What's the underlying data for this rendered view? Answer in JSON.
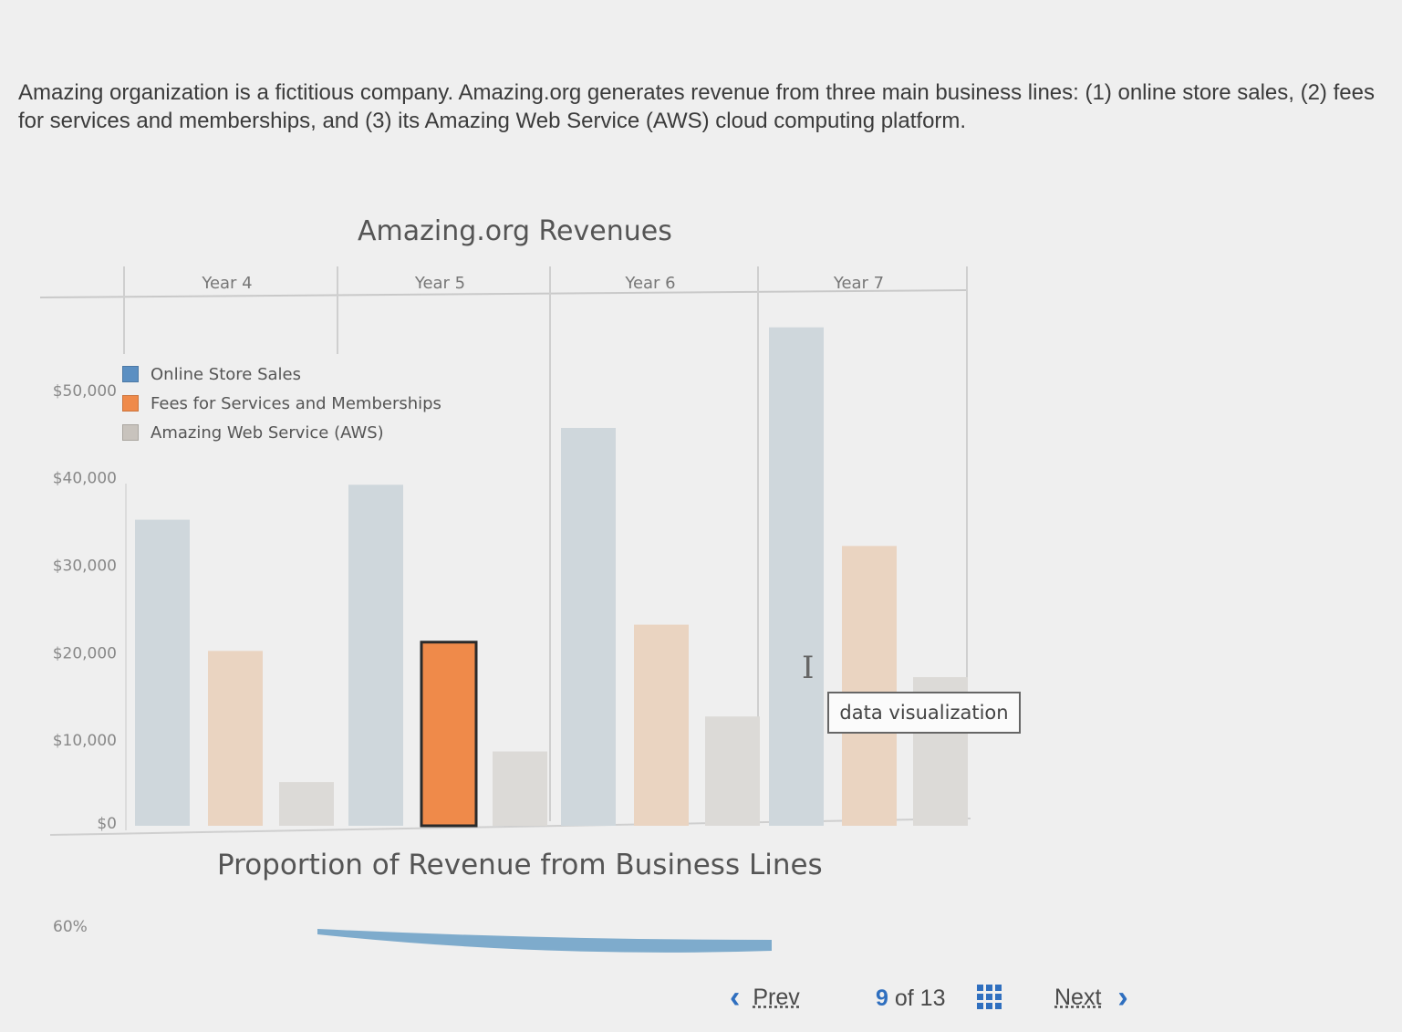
{
  "intro_text": "Amazing organization is a fictitious company. Amazing.org generates revenue from three main business lines: (1) online store sales, (2) fees for services and memberships, and (3) its Amazing Web Service (AWS) cloud computing platform.",
  "colors": {
    "online_store": "#cfd7dc",
    "online_store_legend": "#5b8fc2",
    "fees": "#ead4c1",
    "fees_legend": "#ef8a4a",
    "fees_highlight": "#ef8a4a",
    "aws": "#dcdad7",
    "aws_legend": "#c8c3bd",
    "blue_accent": "#2f6fbf",
    "pct_band": "#6a9fc6"
  },
  "chart_data": {
    "type": "bar",
    "title": "Amazing.org Revenues",
    "categories": [
      "Year 4",
      "Year 5",
      "Year 6",
      "Year 7"
    ],
    "series": [
      {
        "name": "Online Store Sales",
        "values": [
          35000,
          39000,
          45500,
          57000
        ]
      },
      {
        "name": "Fees for Services and Memberships",
        "values": [
          20000,
          21000,
          23000,
          32000
        ]
      },
      {
        "name": "Amazing Web Service (AWS)",
        "values": [
          5000,
          8500,
          12500,
          17000
        ]
      }
    ],
    "highlighted": {
      "series": 1,
      "category": 1
    },
    "y_ticks": [
      "$0",
      "$10,000",
      "$20,000",
      "$30,000",
      "$40,000",
      "$50,000"
    ],
    "ylim": [
      0,
      60000
    ],
    "legend_position": "top-left"
  },
  "tooltip_text": "data visualization",
  "subchart": {
    "title": "Proportion of Revenue from Business Lines",
    "y_tick": "60%"
  },
  "pager": {
    "prev_label": "Prev",
    "current": "9",
    "of_label": "of",
    "total": "13",
    "next_label": "Next",
    "grid_icon": "grid-icon"
  }
}
